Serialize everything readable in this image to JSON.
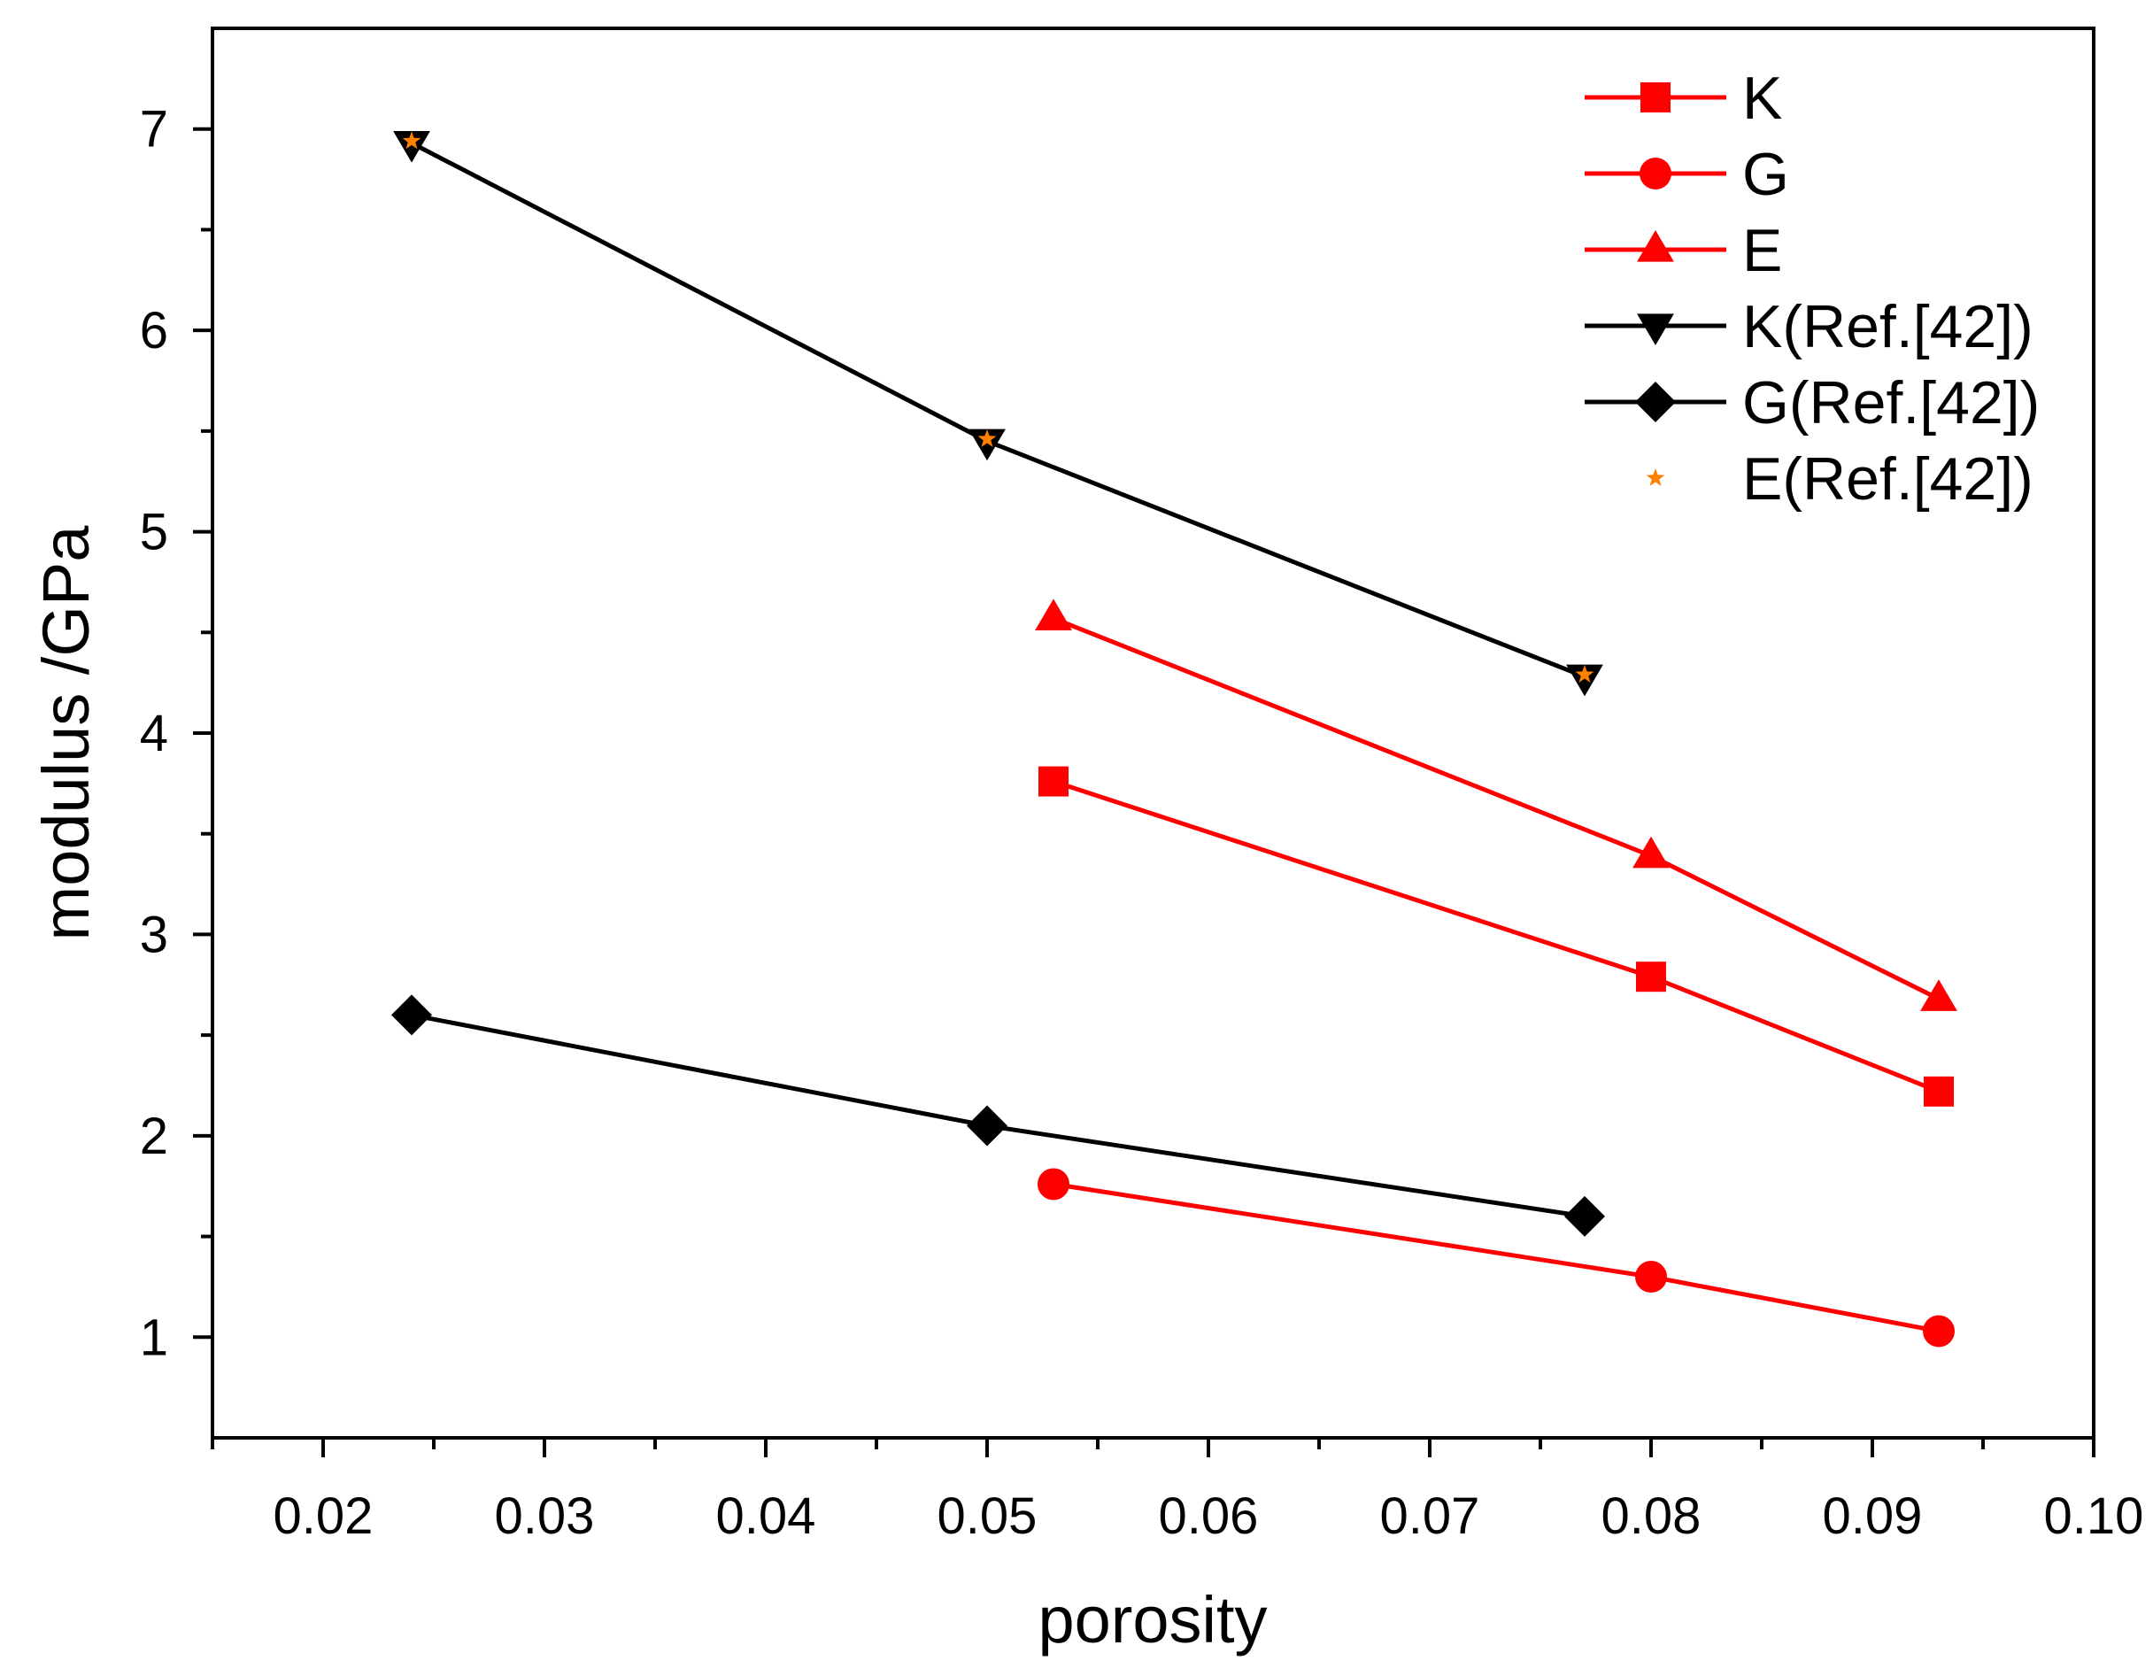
{
  "chart_data": {
    "type": "line",
    "title": "",
    "xlabel": "porosity",
    "ylabel": "modulus /GPa",
    "xlim": [
      0.015,
      0.1
    ],
    "ylim": [
      0.5,
      7.5
    ],
    "x_ticks": [
      0.02,
      0.03,
      0.04,
      0.05,
      0.06,
      0.07,
      0.08,
      0.09,
      0.1
    ],
    "x_tick_labels": [
      "0.02",
      "0.03",
      "0.04",
      "0.05",
      "0.06",
      "0.07",
      "0.08",
      "0.09",
      "0.10"
    ],
    "y_ticks": [
      1,
      2,
      3,
      4,
      5,
      6,
      7
    ],
    "y_tick_labels": [
      "1",
      "2",
      "3",
      "4",
      "5",
      "6",
      "7"
    ],
    "legend_position": "top-right",
    "series": [
      {
        "name": "K",
        "color": "#ff0000",
        "marker": "square",
        "line": true,
        "x": [
          0.053,
          0.08,
          0.093
        ],
        "y": [
          3.76,
          2.79,
          2.22
        ]
      },
      {
        "name": "G",
        "color": "#ff0000",
        "marker": "circle",
        "line": true,
        "x": [
          0.053,
          0.08,
          0.093
        ],
        "y": [
          1.76,
          1.3,
          1.03
        ]
      },
      {
        "name": "E",
        "color": "#ff0000",
        "marker": "triangle-up",
        "line": true,
        "x": [
          0.053,
          0.08,
          0.093
        ],
        "y": [
          4.57,
          3.39,
          2.68
        ]
      },
      {
        "name": "K(Ref.[42])",
        "color": "#000000",
        "marker": "triangle-down",
        "line": true,
        "x": [
          0.024,
          0.05,
          0.077
        ],
        "y": [
          6.93,
          5.45,
          4.28
        ]
      },
      {
        "name": "G(Ref.[42])",
        "color": "#000000",
        "marker": "diamond",
        "line": true,
        "x": [
          0.024,
          0.05,
          0.077
        ],
        "y": [
          2.6,
          2.05,
          1.6
        ]
      },
      {
        "name": "E(Ref.[42])",
        "color": "#ff8000",
        "marker": "star",
        "line": false,
        "x": [
          0.024,
          0.05,
          0.077
        ],
        "y": [
          6.94,
          5.46,
          4.29
        ]
      }
    ]
  }
}
